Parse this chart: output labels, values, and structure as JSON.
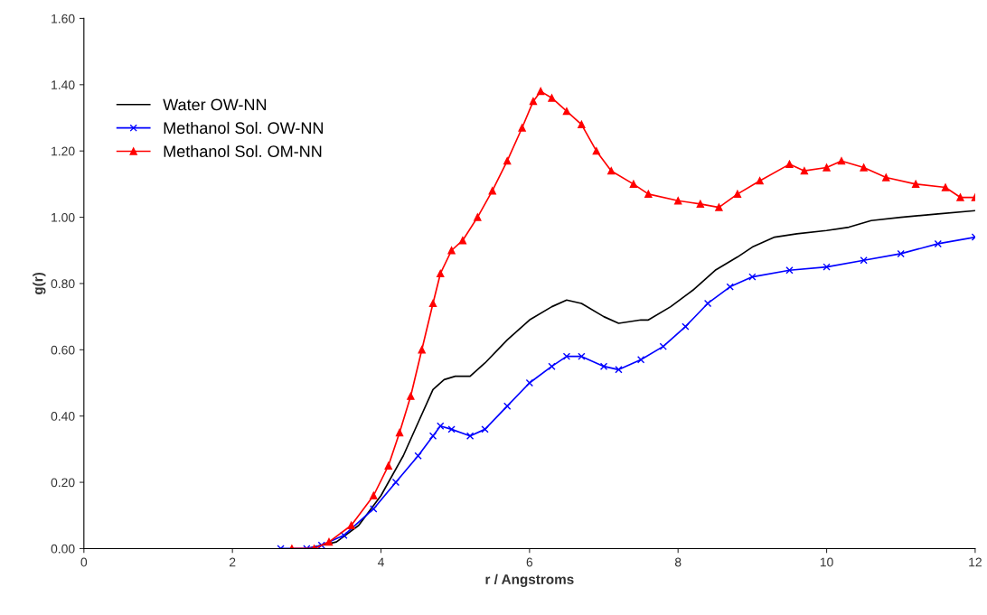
{
  "chart_data": {
    "type": "line",
    "xlabel": "r / Angstroms",
    "ylabel": "g(r)",
    "xlim": [
      0,
      12
    ],
    "ylim": [
      0,
      1.6
    ],
    "xticks": [
      0,
      2,
      4,
      6,
      8,
      10,
      12
    ],
    "yticks": [
      {
        "value": 0,
        "label": "0.00"
      },
      {
        "value": 0.2,
        "label": "0.20"
      },
      {
        "value": 0.4,
        "label": "0.40"
      },
      {
        "value": 0.6,
        "label": "0.60"
      },
      {
        "value": 0.8,
        "label": "0.80"
      },
      {
        "value": 1.0,
        "label": "1.00"
      },
      {
        "value": 1.2,
        "label": "1.20"
      },
      {
        "value": 1.4,
        "label": "1.40"
      },
      {
        "value": 1.6,
        "label": "1.60"
      }
    ],
    "grid": false,
    "legend": "top left",
    "line_style": "solid",
    "series": [
      {
        "name": "Water OW-NN",
        "color": "#000000",
        "marker": "none",
        "x": [
          3.0,
          3.4,
          3.7,
          4.0,
          4.3,
          4.5,
          4.7,
          4.85,
          5.0,
          5.2,
          5.4,
          5.7,
          6.0,
          6.3,
          6.5,
          6.7,
          7.0,
          7.2,
          7.5,
          7.6,
          7.9,
          8.2,
          8.5,
          8.8,
          9.0,
          9.3,
          9.6,
          10.0,
          10.3,
          10.6,
          11.0,
          11.5,
          12.0
        ],
        "values": [
          0,
          0.02,
          0.07,
          0.16,
          0.28,
          0.38,
          0.48,
          0.51,
          0.52,
          0.52,
          0.56,
          0.63,
          0.69,
          0.73,
          0.75,
          0.74,
          0.7,
          0.68,
          0.69,
          0.69,
          0.73,
          0.78,
          0.84,
          0.88,
          0.91,
          0.94,
          0.95,
          0.96,
          0.97,
          0.99,
          1.0,
          1.01,
          1.02
        ]
      },
      {
        "name": "Methanol Sol. OW-NN",
        "color": "#0000ff",
        "marker": "cross",
        "x": [
          2.65,
          3.0,
          3.2,
          3.5,
          3.9,
          4.2,
          4.5,
          4.7,
          4.8,
          4.95,
          5.2,
          5.4,
          5.7,
          6.0,
          6.3,
          6.5,
          6.7,
          7.0,
          7.2,
          7.5,
          7.8,
          8.1,
          8.4,
          8.7,
          9.0,
          9.5,
          10.0,
          10.5,
          11.0,
          11.5,
          12.0
        ],
        "values": [
          0,
          0,
          0.01,
          0.04,
          0.12,
          0.2,
          0.28,
          0.34,
          0.37,
          0.36,
          0.34,
          0.36,
          0.43,
          0.5,
          0.55,
          0.58,
          0.58,
          0.55,
          0.54,
          0.57,
          0.61,
          0.67,
          0.74,
          0.79,
          0.82,
          0.84,
          0.85,
          0.87,
          0.89,
          0.92,
          0.94
        ]
      },
      {
        "name": "Methanol Sol. OM-NN",
        "color": "#ff0000",
        "marker": "triangle",
        "x": [
          2.8,
          3.1,
          3.3,
          3.6,
          3.9,
          4.1,
          4.25,
          4.4,
          4.55,
          4.7,
          4.8,
          4.95,
          5.1,
          5.3,
          5.5,
          5.7,
          5.9,
          6.05,
          6.15,
          6.3,
          6.5,
          6.7,
          6.9,
          7.1,
          7.4,
          7.6,
          8.0,
          8.3,
          8.55,
          8.8,
          9.1,
          9.5,
          9.7,
          10.0,
          10.2,
          10.5,
          10.8,
          11.2,
          11.6,
          11.8,
          12.0
        ],
        "values": [
          0,
          0,
          0.02,
          0.07,
          0.16,
          0.25,
          0.35,
          0.46,
          0.6,
          0.74,
          0.83,
          0.9,
          0.93,
          1.0,
          1.08,
          1.17,
          1.27,
          1.35,
          1.38,
          1.36,
          1.32,
          1.28,
          1.2,
          1.14,
          1.1,
          1.07,
          1.05,
          1.04,
          1.03,
          1.07,
          1.11,
          1.16,
          1.14,
          1.15,
          1.17,
          1.15,
          1.12,
          1.1,
          1.09,
          1.06,
          1.06
        ]
      }
    ]
  }
}
